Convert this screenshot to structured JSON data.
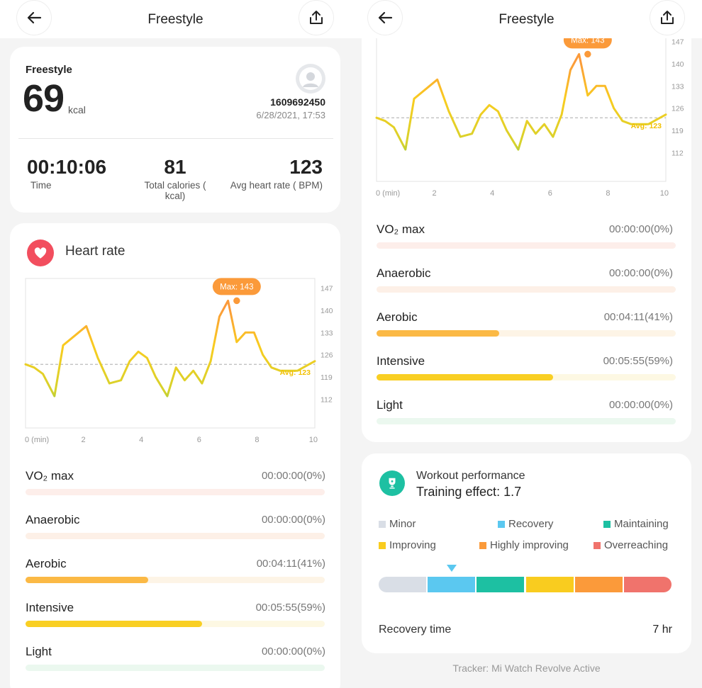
{
  "left": {
    "header": {
      "title": "Freestyle"
    },
    "summary": {
      "sport": "Freestyle",
      "calories": "69",
      "unit": "kcal",
      "user_id": "1609692450",
      "datetime": "6/28/2021, 17:53",
      "stats": [
        {
          "value": "00:10:06",
          "label": "Time"
        },
        {
          "value": "81",
          "label": "Total calories ( kcal)"
        },
        {
          "value": "123",
          "label": "Avg heart rate ( BPM)"
        }
      ]
    },
    "heart": {
      "title": "Heart rate"
    }
  },
  "right": {
    "header": {
      "title": "Freestyle"
    },
    "workout": {
      "title": "Workout performance",
      "effect": "Training effect: 1.7",
      "legend": [
        {
          "label": "Minor",
          "color": "#d9dee6"
        },
        {
          "label": "Recovery",
          "color": "#5bc8f0"
        },
        {
          "label": "Maintaining",
          "color": "#1dc0a2"
        },
        {
          "label": "Improving",
          "color": "#f9cc1f"
        },
        {
          "label": "Highly  improving",
          "color": "#fb9a3a"
        },
        {
          "label": "Overreaching",
          "color": "#f0736c"
        }
      ],
      "recovery_label": "Recovery time",
      "recovery_value": "7  hr"
    },
    "tracker": "Tracker: Mi Watch Revolve Active"
  },
  "zones": [
    {
      "name": "VO₂  max",
      "time": "00:00:00(0%)",
      "fraction": 0,
      "color": "#fb9a7d",
      "track": "#fdeeea"
    },
    {
      "name": "Anaerobic",
      "time": "00:00:00(0%)",
      "fraction": 0,
      "color": "#fbb07a",
      "track": "#fdf0e7"
    },
    {
      "name": "Aerobic",
      "time": "00:04:11(41%)",
      "fraction": 0.41,
      "color": "#fbb945",
      "track": "#fdf4e6"
    },
    {
      "name": "Intensive",
      "time": "00:05:55(59%)",
      "fraction": 0.59,
      "color": "#f9cf23",
      "track": "#fdf8e3"
    },
    {
      "name": "Light",
      "time": "00:00:00(0%)",
      "fraction": 0,
      "color": "#7fd9a6",
      "track": "#ebf8ef"
    }
  ],
  "chart_data": {
    "type": "line",
    "x": [
      0,
      0.3,
      0.6,
      1.0,
      1.3,
      1.7,
      2.1,
      2.5,
      2.9,
      3.3,
      3.6,
      3.9,
      4.2,
      4.5,
      4.9,
      5.2,
      5.5,
      5.8,
      6.1,
      6.4,
      6.7,
      7.0,
      7.3,
      7.6,
      7.9,
      8.2,
      8.5,
      8.8,
      9.1,
      9.4,
      10.0
    ],
    "y": [
      123,
      122,
      120,
      113,
      129,
      132,
      135,
      125,
      117,
      118,
      124,
      127,
      125,
      119,
      113,
      122,
      118,
      121,
      117,
      124,
      138,
      143,
      130,
      133,
      133,
      126,
      122,
      121,
      121,
      121,
      124
    ],
    "xticks": [
      "0 (min)",
      "2",
      "4",
      "6",
      "8",
      "10"
    ],
    "yticks": [
      "147",
      "140",
      "133",
      "126",
      "119",
      "112"
    ],
    "xlim": [
      0,
      10
    ],
    "ylim": [
      103,
      150
    ],
    "max_label": "Max: 143",
    "max_value": 143,
    "max_x": 7.3,
    "avg_label": "Avg: 123",
    "avg_value": 123,
    "grid": false
  },
  "training_effect": {
    "value": 1.7,
    "segments": [
      "#d9dee6",
      "#5bc8f0",
      "#1dc0a2",
      "#f9cc1f",
      "#fb9a3a",
      "#f0736c"
    ],
    "marker_segment": 1
  },
  "icons": {
    "back": "back-arrow-icon",
    "share": "share-icon",
    "heart": "heart-icon",
    "trophy": "trophy-icon",
    "avatar": "avatar-icon"
  }
}
